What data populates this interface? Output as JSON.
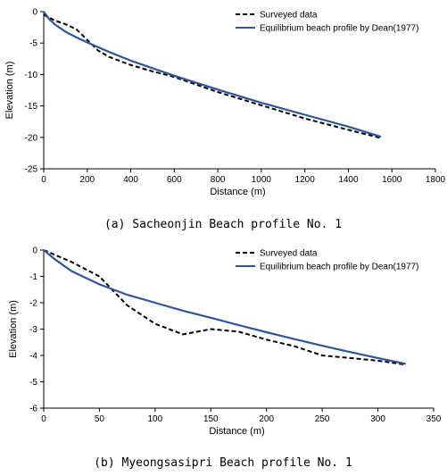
{
  "chart_data": [
    {
      "type": "line",
      "caption": "(a) Sacheonjin Beach profile No. 1",
      "xlabel": "Distance (m)",
      "ylabel": "Elevation (m)",
      "xlim": [
        0,
        1800
      ],
      "ylim": [
        -25,
        0
      ],
      "xticks": [
        0,
        200,
        400,
        600,
        800,
        1000,
        1200,
        1400,
        1600,
        1800
      ],
      "yticks": [
        0,
        -5,
        -10,
        -15,
        -20,
        -25
      ],
      "legend_position": "top-right",
      "series": [
        {
          "name": "Surveyed data",
          "style": "dashed",
          "color": "#000000",
          "x": [
            0,
            50,
            100,
            150,
            200,
            250,
            300,
            400,
            500,
            600,
            800,
            1000,
            1200,
            1400,
            1550
          ],
          "y": [
            -0.5,
            -1.4,
            -2.0,
            -2.8,
            -4.5,
            -6.2,
            -7.2,
            -8.5,
            -9.5,
            -10.4,
            -12.8,
            -14.9,
            -17.0,
            -18.8,
            -20.1
          ]
        },
        {
          "name": "Equilibrium beach profile by Dean(1977)",
          "style": "solid",
          "color": "#2f5597",
          "x": [
            0,
            25,
            50,
            100,
            150,
            200,
            300,
            400,
            600,
            800,
            1000,
            1200,
            1400,
            1550
          ],
          "y": [
            0,
            -1.2,
            -2.0,
            -3.2,
            -4.1,
            -4.9,
            -6.4,
            -7.8,
            -10.2,
            -12.4,
            -14.5,
            -16.4,
            -18.3,
            -19.9
          ]
        }
      ]
    },
    {
      "type": "line",
      "caption": "(b) Myeongsasipri Beach profile No. 1",
      "xlabel": "Distance (m)",
      "ylabel": "Elevation (m)",
      "xlim": [
        0,
        350
      ],
      "ylim": [
        -6,
        0
      ],
      "xticks": [
        0,
        50,
        100,
        150,
        200,
        250,
        300,
        350
      ],
      "yticks": [
        0,
        -1,
        -2,
        -3,
        -4,
        -5,
        -6
      ],
      "legend_position": "top-right",
      "series": [
        {
          "name": "Surveyed data",
          "style": "dashed",
          "color": "#000000",
          "x": [
            0,
            25,
            50,
            75,
            100,
            125,
            150,
            175,
            200,
            225,
            250,
            275,
            300,
            325
          ],
          "y": [
            0,
            -0.45,
            -1.0,
            -2.1,
            -2.8,
            -3.2,
            -3.0,
            -3.1,
            -3.4,
            -3.65,
            -4.0,
            -4.1,
            -4.2,
            -4.35
          ]
        },
        {
          "name": "Equilibrium beach profile by Dean(1977)",
          "style": "solid",
          "color": "#2f5597",
          "x": [
            0,
            10,
            25,
            50,
            75,
            100,
            125,
            150,
            175,
            200,
            225,
            250,
            275,
            300,
            325
          ],
          "y": [
            0,
            -0.35,
            -0.8,
            -1.3,
            -1.7,
            -2.0,
            -2.3,
            -2.57,
            -2.85,
            -3.12,
            -3.38,
            -3.63,
            -3.87,
            -4.1,
            -4.32
          ]
        }
      ]
    }
  ]
}
